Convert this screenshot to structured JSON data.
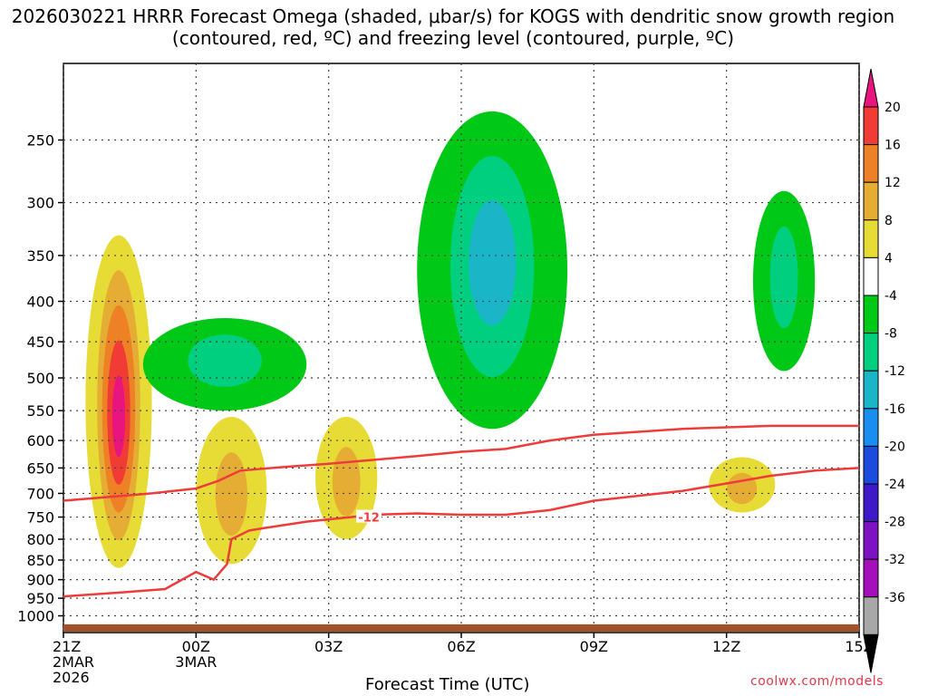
{
  "title": "2026030221 HRRR Forecast Omega (shaded, μbar/s) for KOGS with dendritic snow growth region (contoured, red, ºC) and freezing level (contoured, purple, ºC)",
  "xlabel": "Forecast Time (UTC)",
  "credit": "coolwx.com/models",
  "chart_data": {
    "type": "heatmap",
    "title": "2026030221 HRRR Forecast Omega (shaded, μbar/s) for KOGS with dendritic snow growth region (contoured, red, ºC) and freezing level (contoured, purple, ºC)",
    "xlabel": "Forecast Time (UTC)",
    "ylabel": "",
    "x_range_hours": [
      0,
      18
    ],
    "y_range_hPa": [
      1050,
      200
    ],
    "y_scale": "log",
    "grid": true,
    "x_ticks": [
      {
        "hour": 0,
        "lines": [
          "21Z",
          "2MAR",
          "2026"
        ]
      },
      {
        "hour": 3,
        "lines": [
          "00Z",
          "3MAR"
        ]
      },
      {
        "hour": 6,
        "lines": [
          "03Z"
        ]
      },
      {
        "hour": 9,
        "lines": [
          "06Z"
        ]
      },
      {
        "hour": 12,
        "lines": [
          "09Z"
        ]
      },
      {
        "hour": 15,
        "lines": [
          "12Z"
        ]
      },
      {
        "hour": 18,
        "lines": [
          "15Z"
        ]
      }
    ],
    "y_ticks": [
      250,
      300,
      350,
      400,
      450,
      500,
      550,
      600,
      650,
      700,
      750,
      800,
      850,
      900,
      950,
      1000
    ],
    "colorbar": {
      "labels": [
        "20",
        "16",
        "12",
        "8",
        "4",
        "-4",
        "-8",
        "-12",
        "-16",
        "-20",
        "-24",
        "-28",
        "-32",
        "-36"
      ],
      "colors": [
        "#e8157e",
        "#f03c34",
        "#ee8026",
        "#e6ad35",
        "#e7dc35",
        "#ffffff",
        "#00c817",
        "#00cf7f",
        "#1ab6c8",
        "#1a8ef0",
        "#1c4cde",
        "#3d19c8",
        "#7d12c2",
        "#a50fb9",
        "#a8a8a8",
        "#000000"
      ]
    },
    "omega_features": [
      {
        "name": "rising core",
        "hour_range": [
          0.5,
          2.0
        ],
        "p_range_hPa": [
          330,
          870
        ],
        "max_value": 20
      },
      {
        "name": "rising",
        "hour_range": [
          3.0,
          4.6
        ],
        "p_range_hPa": [
          560,
          860
        ],
        "max_value": 8
      },
      {
        "name": "rising",
        "hour_range": [
          5.7,
          7.1
        ],
        "p_range_hPa": [
          560,
          800
        ],
        "max_value": 8
      },
      {
        "name": "rising",
        "hour_range": [
          14.6,
          16.1
        ],
        "p_range_hPa": [
          630,
          740
        ],
        "max_value": 8
      },
      {
        "name": "sinking",
        "hour_range": [
          1.8,
          5.5
        ],
        "p_range_hPa": [
          420,
          550
        ],
        "min_value": -8
      },
      {
        "name": "sinking",
        "hour_range": [
          8.0,
          11.4
        ],
        "p_range_hPa": [
          230,
          580
        ],
        "min_value": -12
      },
      {
        "name": "sinking",
        "hour_range": [
          15.6,
          17.0
        ],
        "p_range_hPa": [
          290,
          490
        ],
        "min_value": -8
      }
    ],
    "series": [
      {
        "name": "-12",
        "color": "#ee3b3b",
        "x": [
          0,
          1.2,
          2.3,
          3.0,
          3.4,
          3.7,
          3.8,
          4.2,
          4.5,
          5.5,
          6.5,
          7.0,
          8.0,
          9.0,
          10.0,
          11.0,
          12.0,
          13.0,
          14.0,
          15.0,
          16.0,
          17.0,
          18.0
        ],
        "y": [
          945,
          935,
          925,
          880,
          900,
          860,
          800,
          780,
          775,
          760,
          750,
          745,
          742,
          745,
          745,
          735,
          715,
          705,
          695,
          680,
          665,
          655,
          650
        ]
      }
    ],
    "series_2": [
      {
        "name": "",
        "color": "#ee3b3b",
        "x": [
          0,
          2.0,
          3.0,
          3.5,
          4.0,
          5.0,
          6.0,
          7.0,
          8.0,
          9.0,
          10.0,
          11.0,
          12.0,
          14.0,
          16.0,
          18.0
        ],
        "y": [
          715,
          700,
          690,
          675,
          655,
          648,
          642,
          635,
          628,
          620,
          615,
          600,
          590,
          580,
          575,
          575
        ]
      }
    ]
  }
}
